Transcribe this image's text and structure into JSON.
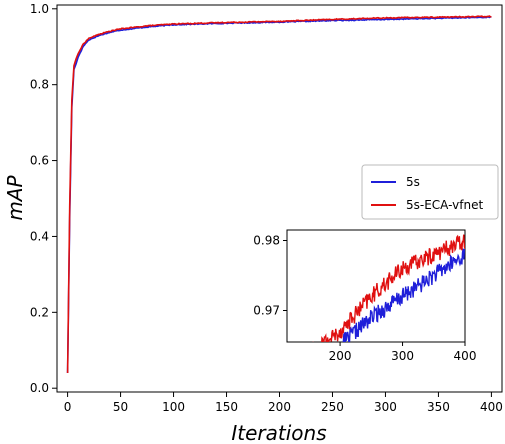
{
  "chart_data": {
    "type": "line",
    "xlabel": "Iterations",
    "ylabel": "mAP",
    "xlim": [
      -10,
      410
    ],
    "ylim": [
      -0.01,
      1.01
    ],
    "xticks": [
      0,
      50,
      100,
      150,
      200,
      250,
      300,
      350,
      400
    ],
    "yticks": [
      0.0,
      0.2,
      0.4,
      0.6,
      0.8,
      1.0
    ],
    "ytick_labels": [
      "0.0",
      "0.2",
      "0.4",
      "0.6",
      "0.8",
      "1.0"
    ],
    "legend_position": "center-right",
    "series": [
      {
        "name": "5s",
        "color": "#1f1fd9",
        "x": [
          0,
          2,
          4,
          6,
          8,
          10,
          15,
          20,
          30,
          40,
          50,
          75,
          100,
          150,
          200,
          250,
          300,
          350,
          400
        ],
        "y": [
          0.04,
          0.45,
          0.74,
          0.84,
          0.855,
          0.873,
          0.902,
          0.918,
          0.93,
          0.938,
          0.944,
          0.952,
          0.958,
          0.962,
          0.965,
          0.969,
          0.972,
          0.975,
          0.978
        ]
      },
      {
        "name": "5s-ECA-vfnet",
        "color": "#e01010",
        "x": [
          0,
          2,
          4,
          6,
          8,
          10,
          15,
          20,
          30,
          40,
          50,
          75,
          100,
          150,
          200,
          250,
          300,
          350,
          400
        ],
        "y": [
          0.04,
          0.48,
          0.76,
          0.85,
          0.868,
          0.882,
          0.908,
          0.922,
          0.933,
          0.941,
          0.947,
          0.955,
          0.96,
          0.964,
          0.967,
          0.972,
          0.976,
          0.978,
          0.98
        ]
      }
    ],
    "inset": {
      "xlim": [
        115,
        400
      ],
      "ylim": [
        0.9655,
        0.9815
      ],
      "xticks": [
        200,
        300,
        400
      ],
      "yticks": [
        0.97,
        0.98
      ],
      "ytick_labels": [
        "0.97",
        "0.98"
      ]
    }
  }
}
